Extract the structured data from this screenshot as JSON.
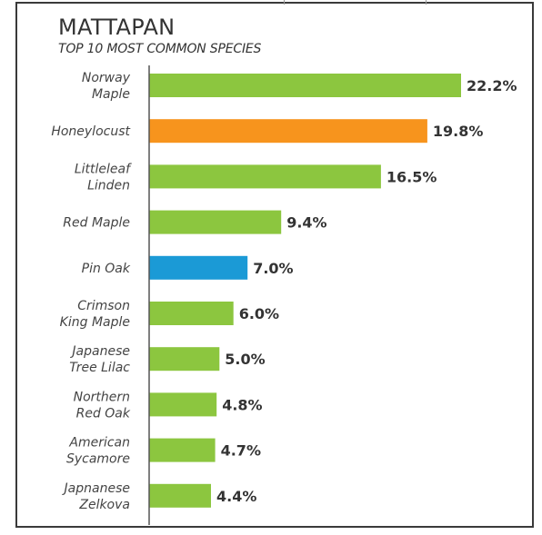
{
  "title": "MATTAPAN",
  "subtitle": "TOP 10 MOST COMMON SPECIES",
  "chart_data": {
    "type": "bar",
    "orientation": "horizontal",
    "title": "MATTAPAN",
    "subtitle": "TOP 10 MOST COMMON SPECIES",
    "categories": [
      [
        "Norway",
        "Maple"
      ],
      [
        "Honeylocust"
      ],
      [
        "Littleleaf",
        "Linden"
      ],
      [
        "Red Maple"
      ],
      [
        "Pin Oak"
      ],
      [
        "Crimson",
        "King Maple"
      ],
      [
        "Japanese",
        "Tree Lilac"
      ],
      [
        "Northern",
        "Red Oak"
      ],
      [
        "American",
        "Sycamore"
      ],
      [
        "Japnanese",
        "Zelkova"
      ]
    ],
    "values": [
      22.2,
      19.8,
      16.5,
      9.4,
      7.0,
      6.0,
      5.0,
      4.8,
      4.7,
      4.4
    ],
    "value_labels": [
      "22.2%",
      "19.8%",
      "16.5%",
      "9.4%",
      "7.0%",
      "6.0%",
      "5.0%",
      "4.8%",
      "4.7%",
      "4.4%"
    ],
    "colors": [
      "#8cc63f",
      "#f7941d",
      "#8cc63f",
      "#8cc63f",
      "#1b9ad6",
      "#8cc63f",
      "#8cc63f",
      "#8cc63f",
      "#8cc63f",
      "#8cc63f"
    ],
    "xlabel": "",
    "ylabel": "",
    "grid": false,
    "legend": "none"
  }
}
